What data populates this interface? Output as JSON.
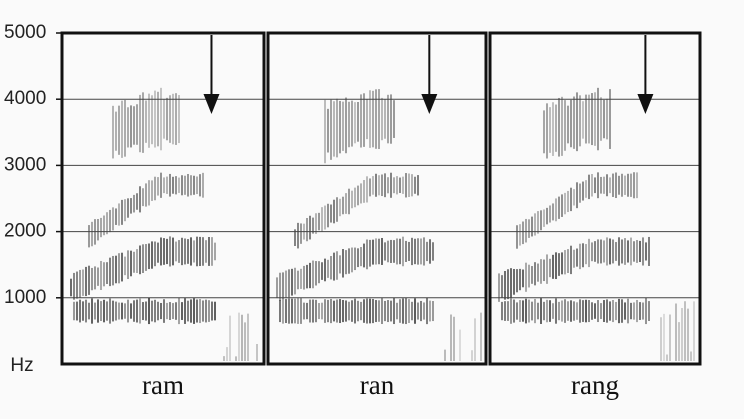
{
  "chart_data": {
    "type": "spectrogram",
    "ylabel": "Hz",
    "panels": [
      "ram",
      "ran",
      "rang"
    ],
    "ylim": [
      0,
      5000
    ],
    "yticks": [
      1000,
      2000,
      3000,
      4000,
      5000
    ],
    "grid": true
  }
}
